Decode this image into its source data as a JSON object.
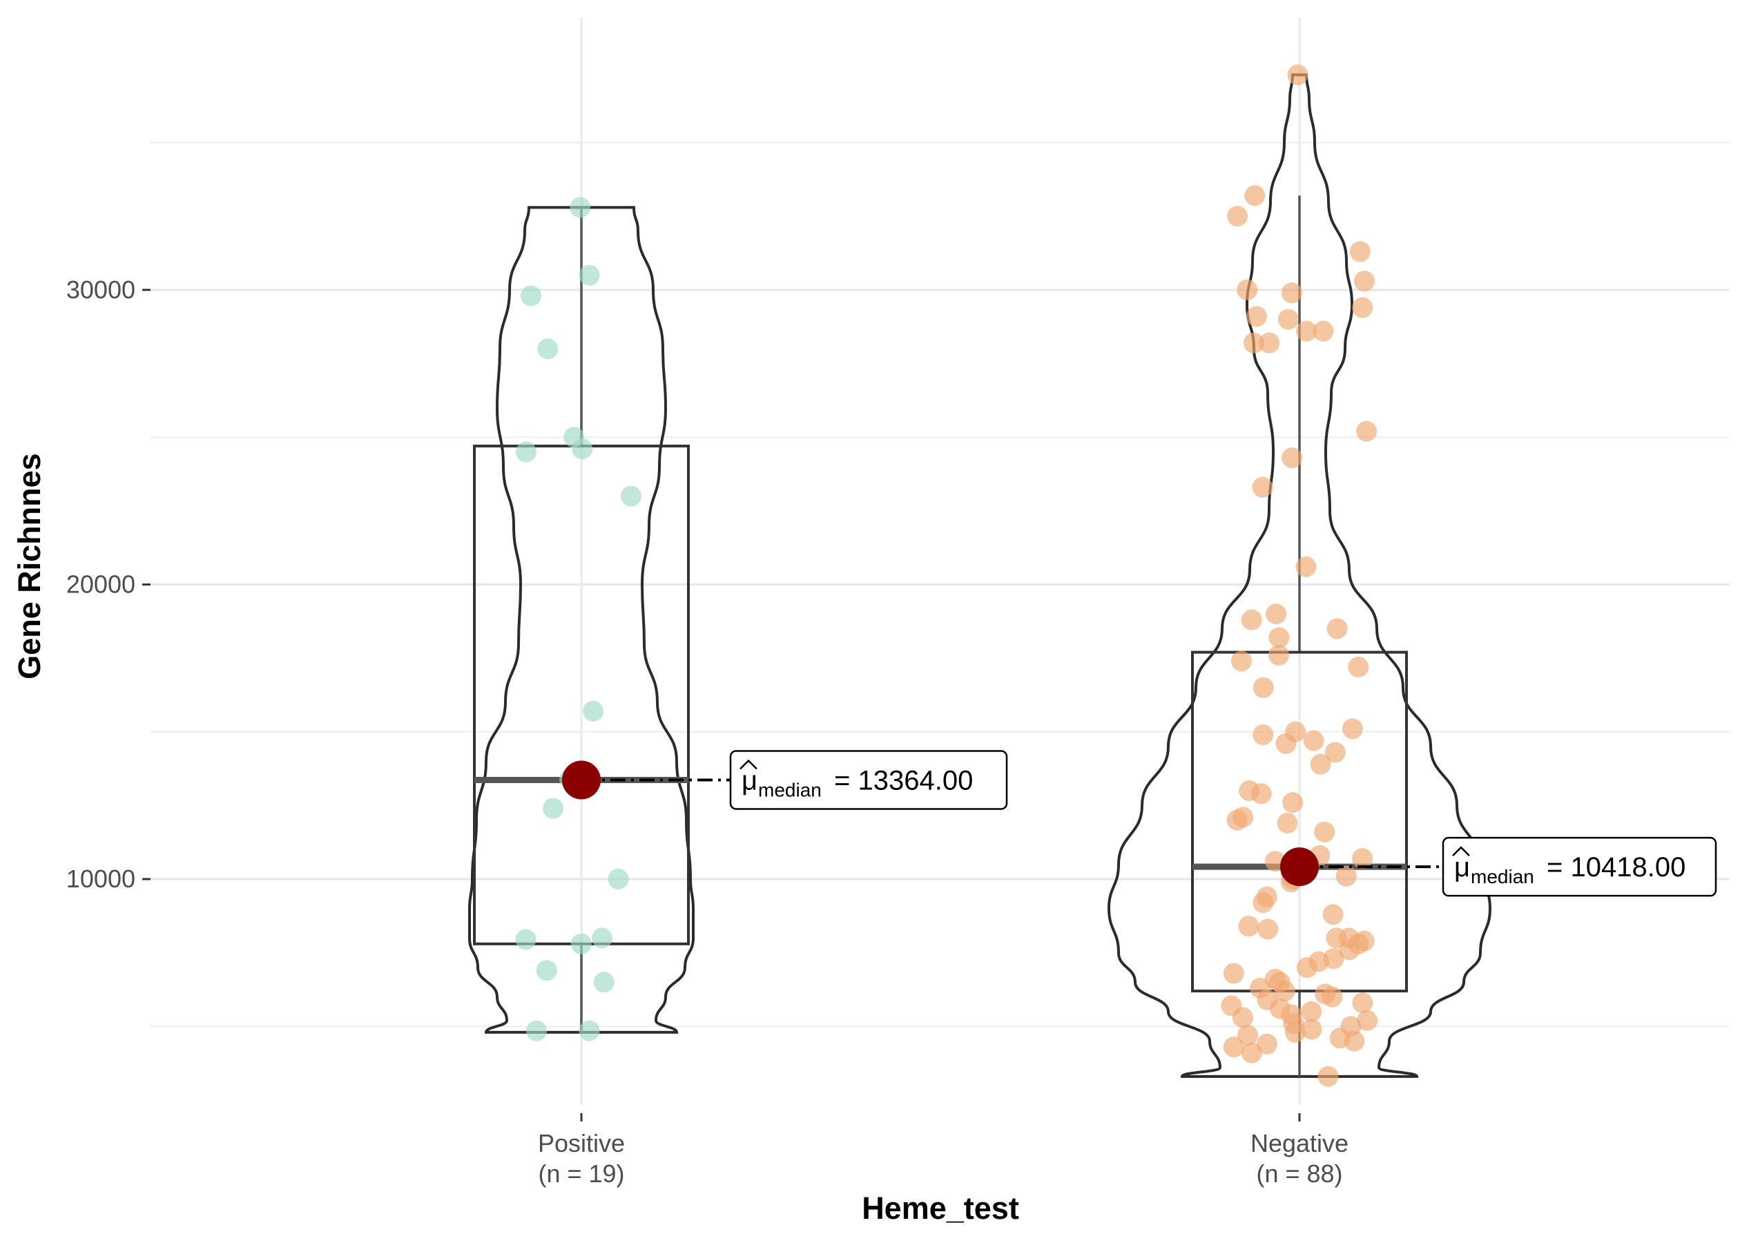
{
  "chart_data": {
    "type": "violin",
    "title": "",
    "xlabel": "Heme_test",
    "ylabel": "Gene Richnnes",
    "ylim": [
      1500,
      39500
    ],
    "yticks": [
      10000,
      20000,
      30000
    ],
    "ytick_labels": [
      "10000",
      "20000",
      "30000"
    ],
    "grid": true,
    "groups": [
      {
        "category": "Positive",
        "n_label": "(n = 19)",
        "color": "#9fd8c6",
        "box": {
          "q1": 7800,
          "median": 13364,
          "q3": 24700,
          "whisker_low": 4800,
          "whisker_high": 32800
        },
        "median_label": {
          "symbol": "μ",
          "subscript": "median",
          "value_text": "= 13364.00"
        },
        "points": [
          32800,
          30500,
          29800,
          28000,
          25000,
          24600,
          24500,
          23000,
          15700,
          13400,
          12400,
          10000,
          8000,
          7950,
          7800,
          6900,
          6500,
          4850,
          4850
        ]
      },
      {
        "category": "Negative",
        "n_label": "(n = 88)",
        "color": "#f0a870",
        "box": {
          "q1": 6200,
          "median": 10418,
          "q3": 17700,
          "whisker_low": 3300,
          "whisker_high": 33200
        },
        "median_label": {
          "symbol": "μ",
          "subscript": "median",
          "value_text": "= 10418.00"
        },
        "points": [
          37300,
          33200,
          32500,
          31300,
          30300,
          30000,
          29900,
          29400,
          29100,
          29000,
          28600,
          28600,
          28200,
          28200,
          25200,
          24300,
          23300,
          20600,
          19000,
          18800,
          18500,
          18200,
          17600,
          17400,
          17200,
          16500,
          15100,
          15000,
          14900,
          14700,
          14600,
          14300,
          13900,
          13000,
          12900,
          12600,
          12100,
          12000,
          11900,
          11600,
          10800,
          10700,
          10600,
          10500,
          10400,
          10200,
          10100,
          10000,
          9900,
          9400,
          9200,
          8800,
          8400,
          8300,
          8000,
          8000,
          7900,
          7800,
          7600,
          7300,
          7200,
          7000,
          6800,
          6600,
          6500,
          6300,
          6200,
          6100,
          6000,
          5900,
          5800,
          5700,
          5600,
          5500,
          5400,
          5300,
          5200,
          5100,
          5000,
          4900,
          4800,
          4700,
          4600,
          4500,
          4400,
          4300,
          4100,
          3300
        ]
      }
    ]
  }
}
